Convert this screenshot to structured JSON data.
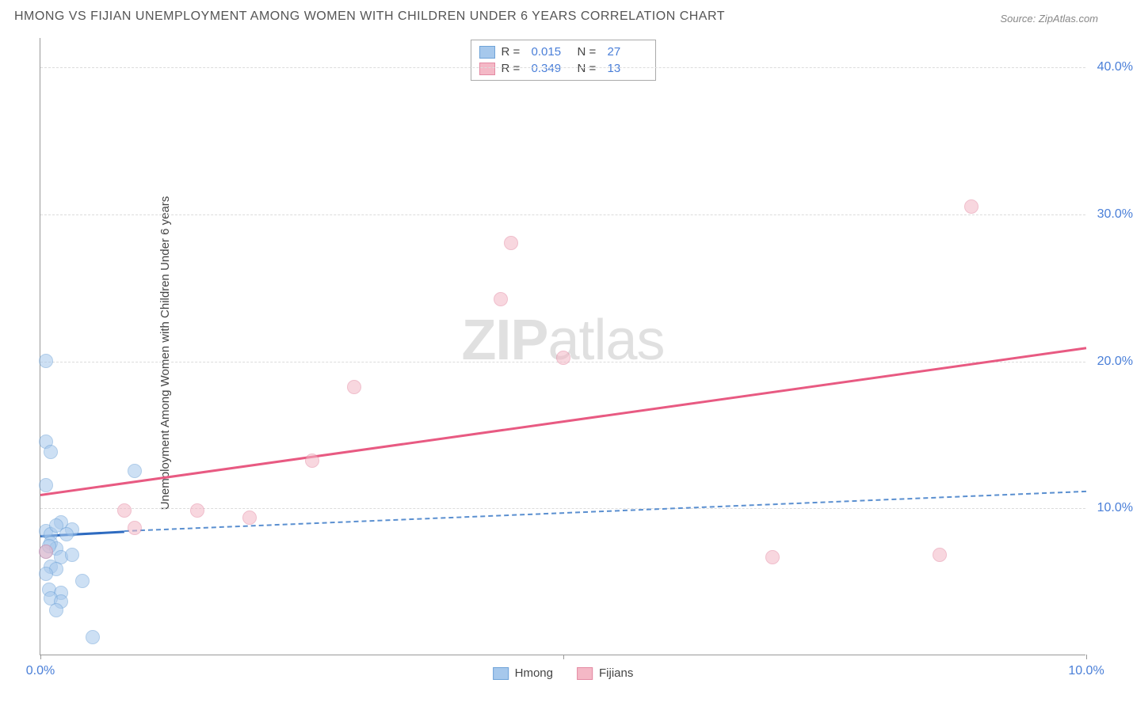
{
  "title": "HMONG VS FIJIAN UNEMPLOYMENT AMONG WOMEN WITH CHILDREN UNDER 6 YEARS CORRELATION CHART",
  "source": "Source: ZipAtlas.com",
  "ylabel": "Unemployment Among Women with Children Under 6 years",
  "watermark_bold": "ZIP",
  "watermark_rest": "atlas",
  "chart": {
    "type": "scatter",
    "xlim": [
      0,
      10
    ],
    "ylim": [
      0,
      42
    ],
    "x_ticks": [
      0,
      5,
      10
    ],
    "x_tick_labels": [
      "0.0%",
      "",
      "10.0%"
    ],
    "x_minor_tick": 5,
    "y_ticks": [
      10,
      20,
      30,
      40
    ],
    "y_tick_labels": [
      "10.0%",
      "20.0%",
      "30.0%",
      "40.0%"
    ],
    "background_color": "#ffffff",
    "grid_color": "#dcdcdc",
    "axis_color": "#999999",
    "tick_label_color": "#4a7fd8"
  },
  "series": [
    {
      "name": "Hmong",
      "color_fill": "#a6c8ec",
      "color_stroke": "#6fa3d8",
      "fill_opacity": 0.55,
      "marker_radius": 9,
      "points": [
        {
          "x": 0.05,
          "y": 20.0
        },
        {
          "x": 0.05,
          "y": 14.5
        },
        {
          "x": 0.1,
          "y": 13.8
        },
        {
          "x": 0.05,
          "y": 11.5
        },
        {
          "x": 0.9,
          "y": 12.5
        },
        {
          "x": 0.05,
          "y": 8.4
        },
        {
          "x": 0.1,
          "y": 8.2
        },
        {
          "x": 0.2,
          "y": 9.0
        },
        {
          "x": 0.15,
          "y": 8.8
        },
        {
          "x": 0.1,
          "y": 7.6
        },
        {
          "x": 0.3,
          "y": 8.5
        },
        {
          "x": 0.25,
          "y": 8.2
        },
        {
          "x": 0.05,
          "y": 7.0
        },
        {
          "x": 0.15,
          "y": 7.2
        },
        {
          "x": 0.08,
          "y": 7.4
        },
        {
          "x": 0.2,
          "y": 6.6
        },
        {
          "x": 0.3,
          "y": 6.8
        },
        {
          "x": 0.1,
          "y": 6.0
        },
        {
          "x": 0.15,
          "y": 5.8
        },
        {
          "x": 0.05,
          "y": 5.5
        },
        {
          "x": 0.4,
          "y": 5.0
        },
        {
          "x": 0.08,
          "y": 4.4
        },
        {
          "x": 0.2,
          "y": 4.2
        },
        {
          "x": 0.1,
          "y": 3.8
        },
        {
          "x": 0.2,
          "y": 3.6
        },
        {
          "x": 0.15,
          "y": 3.0
        },
        {
          "x": 0.5,
          "y": 1.2
        }
      ],
      "trend": {
        "style": "solid_then_dashed",
        "color": "#2e6bc0",
        "width": 3,
        "dash_color": "#5a8fd0",
        "start": {
          "x": 0,
          "y": 8.2
        },
        "solid_end": {
          "x": 0.8,
          "y": 8.5
        },
        "end": {
          "x": 10,
          "y": 11.2
        }
      }
    },
    {
      "name": "Fijians",
      "color_fill": "#f4b8c6",
      "color_stroke": "#e48aa3",
      "fill_opacity": 0.55,
      "marker_radius": 9,
      "points": [
        {
          "x": 4.5,
          "y": 28.0
        },
        {
          "x": 4.4,
          "y": 24.2
        },
        {
          "x": 5.0,
          "y": 20.2
        },
        {
          "x": 8.9,
          "y": 30.5
        },
        {
          "x": 3.0,
          "y": 18.2
        },
        {
          "x": 2.6,
          "y": 13.2
        },
        {
          "x": 1.5,
          "y": 9.8
        },
        {
          "x": 2.0,
          "y": 9.3
        },
        {
          "x": 0.8,
          "y": 9.8
        },
        {
          "x": 0.9,
          "y": 8.6
        },
        {
          "x": 7.0,
          "y": 6.6
        },
        {
          "x": 8.6,
          "y": 6.8
        },
        {
          "x": 0.05,
          "y": 7.0
        }
      ],
      "trend": {
        "style": "solid",
        "color": "#e85a82",
        "width": 3,
        "start": {
          "x": 0,
          "y": 11.0
        },
        "end": {
          "x": 10,
          "y": 21.0
        }
      }
    }
  ],
  "legend_top": {
    "rows": [
      {
        "swatch_fill": "#a6c8ec",
        "swatch_stroke": "#6fa3d8",
        "r_label": "R =",
        "r_val": "0.015",
        "n_label": "N =",
        "n_val": "27"
      },
      {
        "swatch_fill": "#f4b8c6",
        "swatch_stroke": "#e48aa3",
        "r_label": "R =",
        "r_val": "0.349",
        "n_label": "N =",
        "n_val": "13"
      }
    ]
  },
  "legend_bottom": {
    "items": [
      {
        "swatch_fill": "#a6c8ec",
        "swatch_stroke": "#6fa3d8",
        "label": "Hmong"
      },
      {
        "swatch_fill": "#f4b8c6",
        "swatch_stroke": "#e48aa3",
        "label": "Fijians"
      }
    ]
  }
}
